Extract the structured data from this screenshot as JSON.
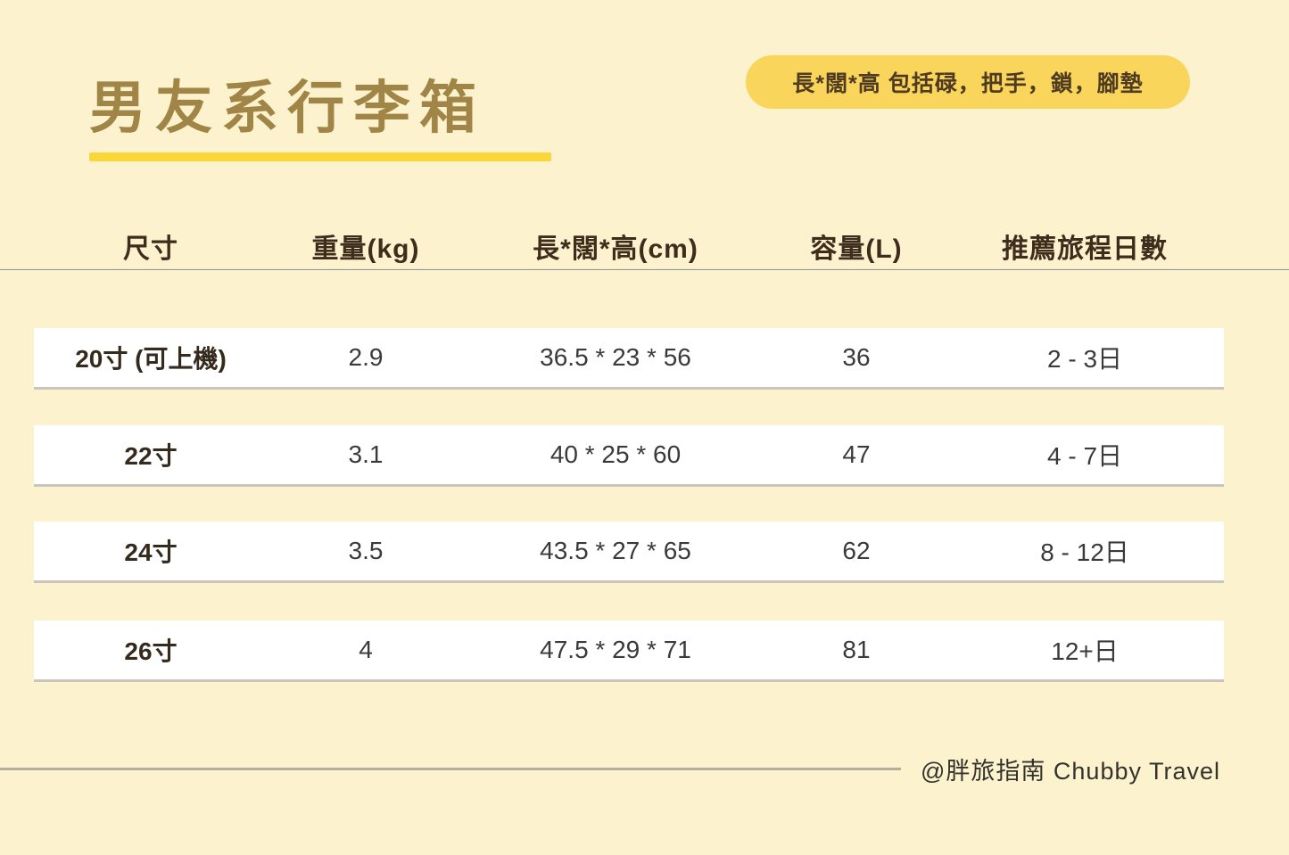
{
  "page": {
    "background": "#FCF3CE",
    "accent_yellow": "#FBD637",
    "badge_yellow": "#F9D55B",
    "title_gold": "#A08546",
    "text_dark_brown": "#3E2D1C"
  },
  "title": {
    "text": "男友系行李箱"
  },
  "badge": {
    "text": "長*闊*高 包括碌，把手，鎖，腳墊"
  },
  "table": {
    "headers": [
      "尺寸",
      "重量(kg)",
      "長*闊*高(cm)",
      "容量(L)",
      "推薦旅程日數"
    ],
    "rows": [
      {
        "size": "20寸 (可上機)",
        "weight": "2.9",
        "dimensions": "36.5 * 23 * 56",
        "capacity": "36",
        "days": "2 - 3日"
      },
      {
        "size": "22寸",
        "weight": "3.1",
        "dimensions": "40 * 25 * 60",
        "capacity": "47",
        "days": "4 - 7日"
      },
      {
        "size": "24寸",
        "weight": "3.5",
        "dimensions": "43.5 * 27 * 65",
        "capacity": "62",
        "days": "8 - 12日"
      },
      {
        "size": "26寸",
        "weight": "4",
        "dimensions": "47.5 * 29 * 71",
        "capacity": "81",
        "days": "12+日"
      }
    ]
  },
  "footer": {
    "credit": "@胖旅指南  Chubby Travel"
  }
}
